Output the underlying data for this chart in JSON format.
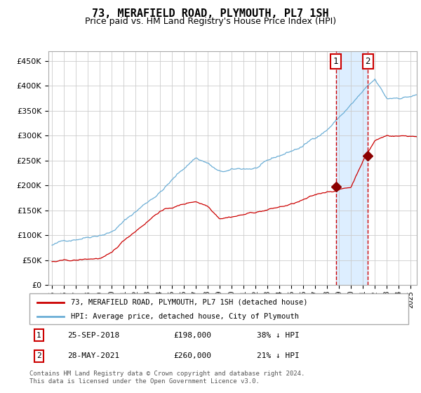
{
  "title": "73, MERAFIELD ROAD, PLYMOUTH, PL7 1SH",
  "subtitle": "Price paid vs. HM Land Registry's House Price Index (HPI)",
  "footer": "Contains HM Land Registry data © Crown copyright and database right 2024.\nThis data is licensed under the Open Government Licence v3.0.",
  "legend_line1": "73, MERAFIELD ROAD, PLYMOUTH, PL7 1SH (detached house)",
  "legend_line2": "HPI: Average price, detached house, City of Plymouth",
  "annotation1_label": "1",
  "annotation1_date": "25-SEP-2018",
  "annotation1_price": "£198,000",
  "annotation1_hpi": "38% ↓ HPI",
  "annotation2_label": "2",
  "annotation2_date": "28-MAY-2021",
  "annotation2_price": "£260,000",
  "annotation2_hpi": "21% ↓ HPI",
  "hpi_color": "#6baed6",
  "price_color": "#cc0000",
  "marker_color": "#8b0000",
  "vline_color": "#cc0000",
  "shading_color": "#ddeeff",
  "ylim": [
    0,
    470000
  ],
  "yticks": [
    0,
    50000,
    100000,
    150000,
    200000,
    250000,
    300000,
    350000,
    400000,
    450000
  ],
  "year_start": 1995,
  "year_end": 2025,
  "sale1_year": 2018.73,
  "sale1_price": 198000,
  "sale2_year": 2021.41,
  "sale2_price": 260000
}
